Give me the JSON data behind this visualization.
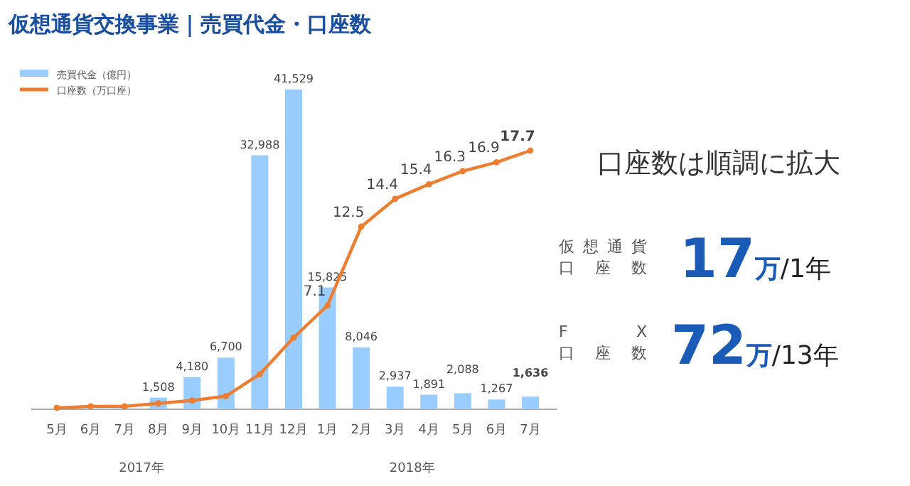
{
  "chart_data": {
    "type": "bar",
    "title": "仮想通貨交換事業｜売買代金・口座数",
    "categories": [
      "5月",
      "6月",
      "7月",
      "8月",
      "9月",
      "10月",
      "11月",
      "12月",
      "1月",
      "2月",
      "3月",
      "4月",
      "5月",
      "6月",
      "7月"
    ],
    "series": [
      {
        "name": "売買代金（億円）",
        "color": "#99ccff",
        "values": [
          null,
          150,
          150,
          1508,
          4180,
          6700,
          32988,
          41529,
          15825,
          8046,
          2937,
          1891,
          2088,
          1267,
          1636
        ],
        "value_labels": [
          null,
          null,
          null,
          "1,508",
          "4,180",
          "6,700",
          "32,988",
          "41,529",
          "15,825",
          "8,046",
          "2,937",
          "1,891",
          "2,088",
          "1,267",
          "1,636"
        ]
      },
      {
        "name": "口座数（万口座）",
        "type": "line",
        "axis": "y2",
        "color": "#ed7d31",
        "values": [
          0.1,
          0.2,
          0.2,
          0.4,
          0.6,
          0.9,
          2.4,
          4.9,
          7.1,
          12.5,
          14.4,
          15.4,
          16.3,
          16.9,
          17.7
        ],
        "value_labels": [
          null,
          null,
          null,
          null,
          null,
          null,
          null,
          null,
          "7.1",
          "12.5",
          "14.4",
          "15.4",
          "16.3",
          "16.9",
          "17.7"
        ]
      }
    ],
    "marker": "circle",
    "legend": "top left",
    "annotations": [
      "2017年",
      "2018年",
      "口座数は順調に拡大",
      "仮想通貨",
      "口座数",
      "17万/1年",
      "FX",
      "口座数",
      "72万/13年"
    ]
  }
}
